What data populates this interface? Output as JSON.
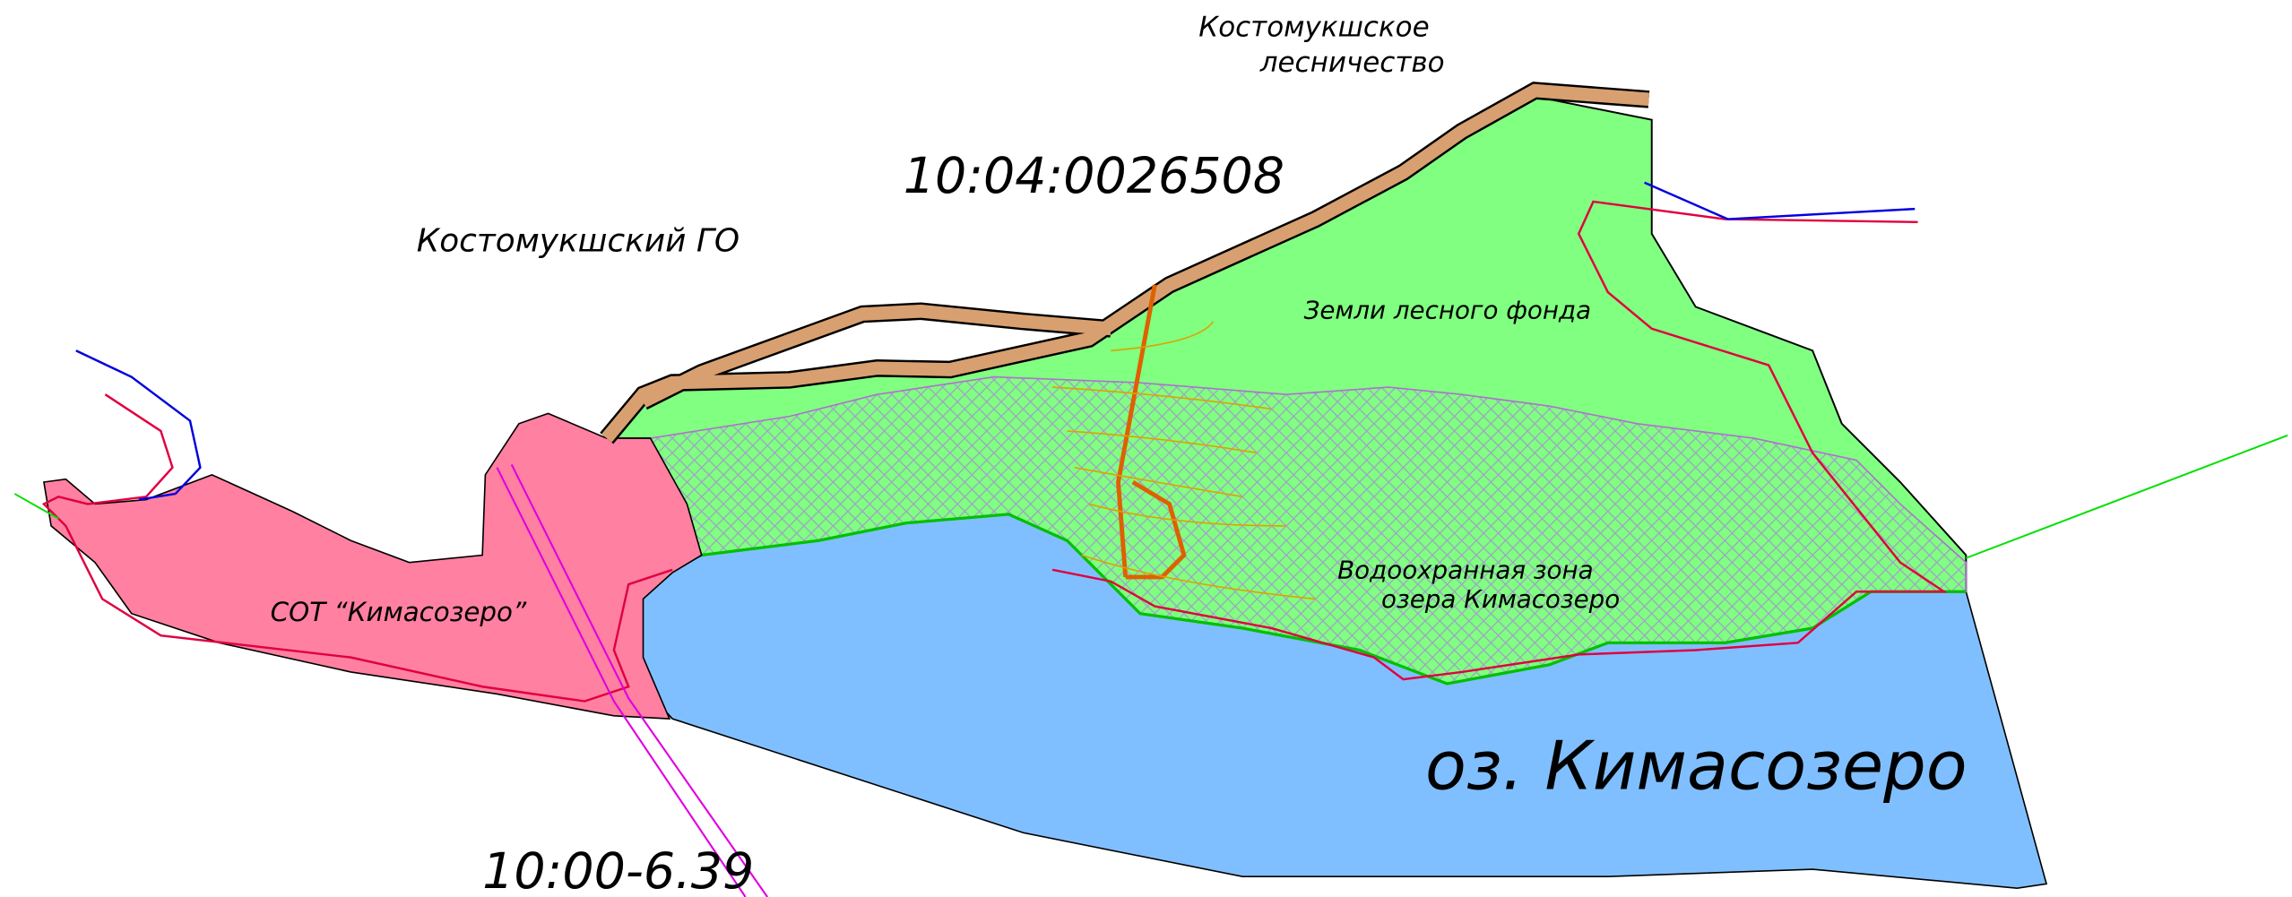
{
  "labels": {
    "forestry": [
      "Костомукшское",
      "лесничество"
    ],
    "cadastral": "10:04:0026508",
    "district": "Костомукшский ГО",
    "forest_lands": "Земли лесного фонда",
    "water_zone": [
      "Водоохранная зона",
      "озера Кимасозеро"
    ],
    "sot": "СОТ “Кимасозеро”",
    "lake": "оз. Кимасозеро",
    "parcel": "10:00-6.39"
  }
}
